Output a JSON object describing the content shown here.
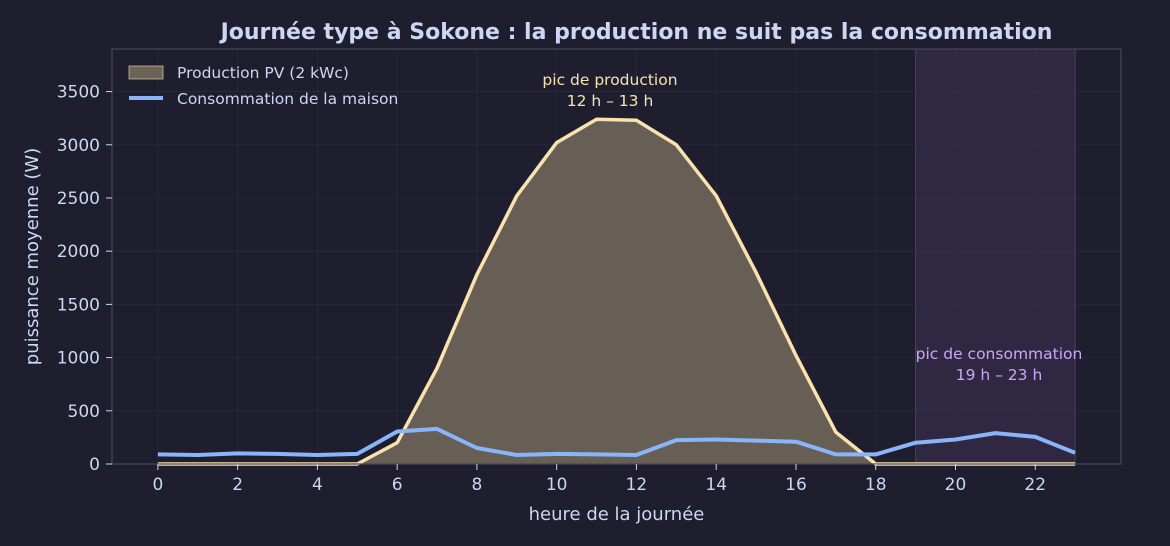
{
  "chart_data": {
    "type": "area",
    "title": "Journée type à Sokone : la production ne suit pas la consommation",
    "xlabel": "heure de la journée",
    "ylabel": "puissance moyenne (W)",
    "xlim": [
      -1.15,
      24.15
    ],
    "ylim": [
      0,
      3900
    ],
    "xticks": [
      0,
      2,
      4,
      6,
      8,
      10,
      12,
      14,
      16,
      18,
      20,
      22
    ],
    "yticks": [
      0,
      500,
      1000,
      1500,
      2000,
      2500,
      3000,
      3500
    ],
    "grid": true,
    "legend_position": "top-left",
    "x": [
      0,
      1,
      2,
      3,
      4,
      5,
      6,
      7,
      8,
      9,
      10,
      11,
      12,
      13,
      14,
      15,
      16,
      17,
      18,
      19,
      20,
      21,
      22,
      23
    ],
    "series": [
      {
        "name": "Production PV (2 kWc)",
        "kind": "area",
        "color": "#f9e2af",
        "fill": "#6c6358",
        "values": [
          0,
          0,
          0,
          0,
          0,
          0,
          200,
          900,
          1780,
          2520,
          3020,
          3240,
          3230,
          3000,
          2520,
          1800,
          1020,
          300,
          0,
          0,
          0,
          0,
          0,
          0
        ]
      },
      {
        "name": "Consommation de la maison",
        "kind": "line",
        "color": "#89b4fa",
        "values": [
          90,
          85,
          100,
          95,
          85,
          95,
          305,
          330,
          150,
          85,
          95,
          90,
          85,
          225,
          230,
          220,
          210,
          90,
          90,
          200,
          230,
          290,
          255,
          105
        ]
      }
    ],
    "annotations": {
      "production_peak": {
        "line1": "pic de production",
        "line2": "12 h – 13 h",
        "color": "#f9e2af"
      },
      "consumption_peak": {
        "line1": "pic de consommation",
        "line2": "19 h – 23 h",
        "color": "#cba6f7",
        "span": [
          19,
          23
        ]
      }
    }
  },
  "colors": {
    "background": "#1e1e2e",
    "axes_background": "#1e1e2e",
    "text": "#cdd6f4",
    "grid": "#313244",
    "spine": "#45475a",
    "highlight_band": "#302842"
  }
}
